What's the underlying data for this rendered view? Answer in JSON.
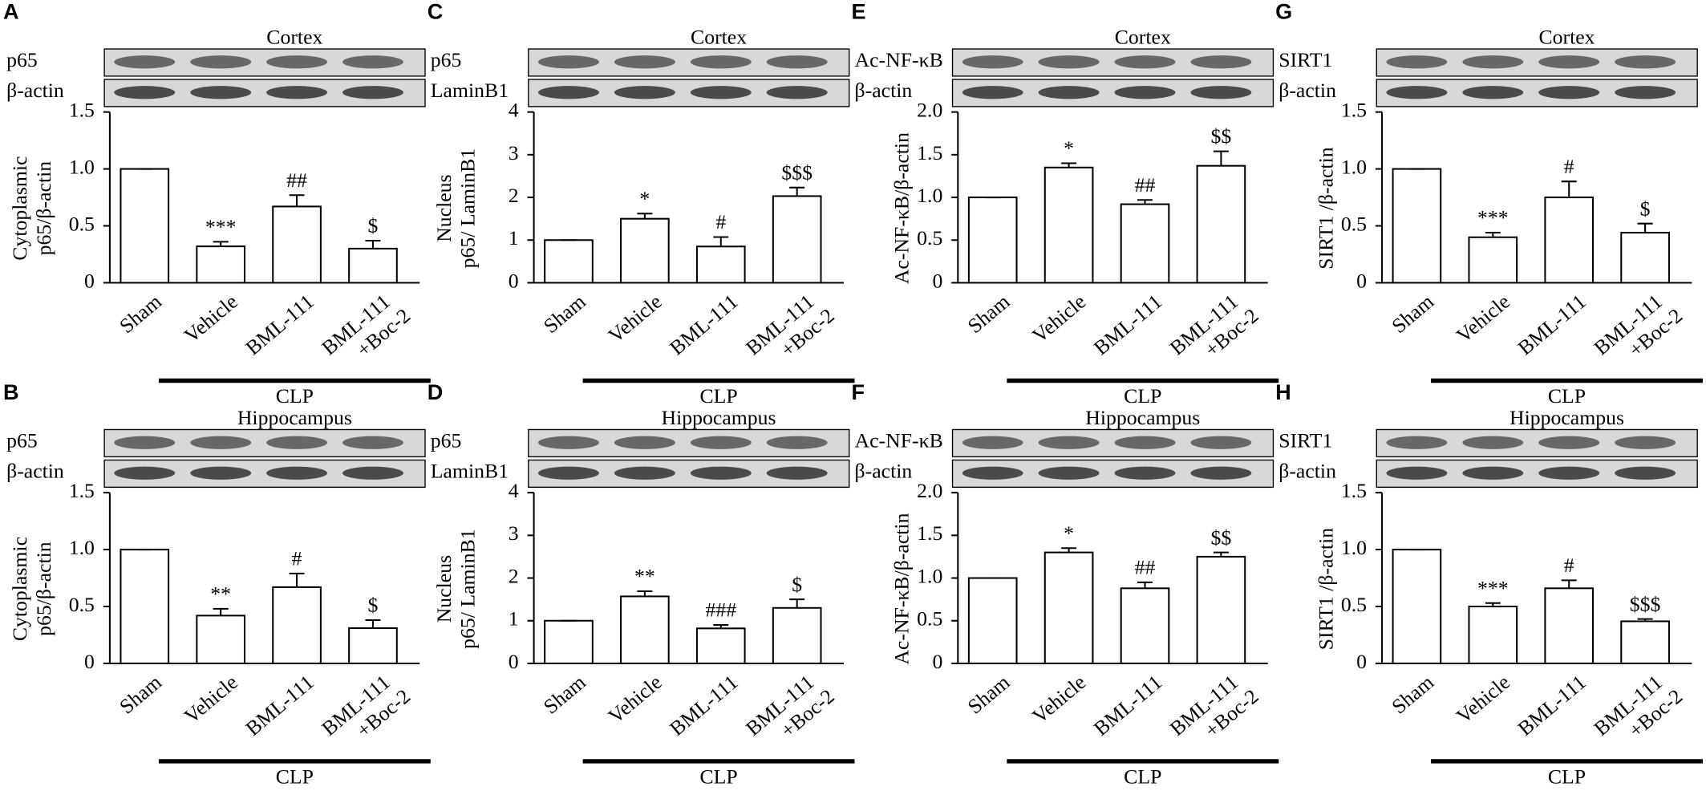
{
  "chart_data": [
    {
      "type": "bar",
      "panel": "A",
      "title": "Cortex",
      "blots": [
        "p65",
        "β-actin"
      ],
      "ylabel": [
        "Cytoplasmic",
        "p65/β-actin"
      ],
      "categories": [
        [
          "Sham"
        ],
        [
          "Vehicle"
        ],
        [
          "BML-111"
        ],
        [
          "BML-111",
          "+Boc-2"
        ]
      ],
      "values": [
        1.0,
        0.32,
        0.67,
        0.3
      ],
      "errors": [
        0,
        0.04,
        0.1,
        0.07
      ],
      "annotations": [
        null,
        "***",
        "##",
        "$"
      ],
      "ylim": [
        0,
        1.5
      ],
      "yticks": [
        0,
        {
          "value": 0.5,
          "label": "0.5"
        },
        {
          "value": 1,
          "label": "1.0"
        },
        {
          "value": 1.5,
          "label": "1.5"
        }
      ],
      "group_label": "CLP",
      "color": "#ffffff"
    },
    {
      "type": "bar",
      "panel": "C",
      "title": "Cortex",
      "blots": [
        "p65",
        "LaminB1"
      ],
      "ylabel": [
        "Nucleus",
        "p65/ LaminB1"
      ],
      "categories": [
        [
          "Sham"
        ],
        [
          "Vehicle"
        ],
        [
          "BML-111"
        ],
        [
          "BML-111",
          "+Boc-2"
        ]
      ],
      "values": [
        1.0,
        1.5,
        0.85,
        2.03
      ],
      "errors": [
        0,
        0.12,
        0.22,
        0.2
      ],
      "annotations": [
        null,
        "*",
        "#",
        "$$$"
      ],
      "ylim": [
        0,
        4
      ],
      "yticks": [
        0,
        1,
        2,
        3,
        4
      ],
      "group_label": "CLP",
      "color": "#ffffff"
    },
    {
      "type": "bar",
      "panel": "E",
      "title": "Cortex",
      "blots": [
        "Ac-NF-κB",
        "β-actin"
      ],
      "ylabel": [
        "Ac-NF-κB/β-actin"
      ],
      "categories": [
        [
          "Sham"
        ],
        [
          "Vehicle"
        ],
        [
          "BML-111"
        ],
        [
          "BML-111",
          "+Boc-2"
        ]
      ],
      "values": [
        1.0,
        1.35,
        0.92,
        1.37
      ],
      "errors": [
        0,
        0.05,
        0.05,
        0.17
      ],
      "annotations": [
        null,
        "*",
        "##",
        "$$"
      ],
      "ylim": [
        0,
        2
      ],
      "yticks": [
        0,
        {
          "value": 0.5,
          "label": "0.5"
        },
        {
          "value": 1,
          "label": "1.0"
        },
        {
          "value": 1.5,
          "label": "1.5"
        },
        {
          "value": 2,
          "label": "2.0"
        }
      ],
      "group_label": "CLP",
      "color": "#ffffff"
    },
    {
      "type": "bar",
      "panel": "G",
      "title": "Cortex",
      "blots": [
        "SIRT1",
        "β-actin"
      ],
      "ylabel": [
        "SIRT1 /β-actin"
      ],
      "categories": [
        [
          "Sham"
        ],
        [
          "Vehicle"
        ],
        [
          "BML-111"
        ],
        [
          "BML-111",
          "+Boc-2"
        ]
      ],
      "values": [
        1.0,
        0.4,
        0.75,
        0.44
      ],
      "errors": [
        0,
        0.04,
        0.14,
        0.08
      ],
      "annotations": [
        null,
        "***",
        "#",
        "$"
      ],
      "ylim": [
        0,
        1.5
      ],
      "yticks": [
        0,
        {
          "value": 0.5,
          "label": "0.5"
        },
        {
          "value": 1,
          "label": "1.0"
        },
        {
          "value": 1.5,
          "label": "1.5"
        }
      ],
      "group_label": "CLP",
      "color": "#ffffff"
    },
    {
      "type": "bar",
      "panel": "B",
      "title": "Hippocampus",
      "blots": [
        "p65",
        "β-actin"
      ],
      "ylabel": [
        "Cytoplasmic",
        "p65/β-actin"
      ],
      "categories": [
        [
          "Sham"
        ],
        [
          "Vehicle"
        ],
        [
          "BML-111"
        ],
        [
          "BML-111",
          "+Boc-2"
        ]
      ],
      "values": [
        1.0,
        0.42,
        0.67,
        0.31
      ],
      "errors": [
        0,
        0.06,
        0.12,
        0.07
      ],
      "annotations": [
        null,
        "**",
        "#",
        "$"
      ],
      "ylim": [
        0,
        1.5
      ],
      "yticks": [
        0,
        {
          "value": 0.5,
          "label": "0.5"
        },
        {
          "value": 1,
          "label": "1.0"
        },
        {
          "value": 1.5,
          "label": "1.5"
        }
      ],
      "group_label": "CLP",
      "color": "#ffffff"
    },
    {
      "type": "bar",
      "panel": "D",
      "title": "Hippocampus",
      "blots": [
        "p65",
        "LaminB1"
      ],
      "ylabel": [
        "Nucleus",
        "p65/ LaminB1"
      ],
      "categories": [
        [
          "Sham"
        ],
        [
          "Vehicle"
        ],
        [
          "BML-111"
        ],
        [
          "BML-111",
          "+Boc-2"
        ]
      ],
      "values": [
        1.0,
        1.57,
        0.82,
        1.3
      ],
      "errors": [
        0,
        0.12,
        0.08,
        0.2
      ],
      "annotations": [
        null,
        "**",
        "###",
        "$"
      ],
      "ylim": [
        0,
        4
      ],
      "yticks": [
        0,
        1,
        2,
        3,
        4
      ],
      "group_label": "CLP",
      "color": "#ffffff"
    },
    {
      "type": "bar",
      "panel": "F",
      "title": "Hippocampus",
      "blots": [
        "Ac-NF-κB",
        "β-actin"
      ],
      "ylabel": [
        "Ac-NF-κB/β-actin"
      ],
      "categories": [
        [
          "Sham"
        ],
        [
          "Vehicle"
        ],
        [
          "BML-111"
        ],
        [
          "BML-111",
          "+Boc-2"
        ]
      ],
      "values": [
        1.0,
        1.3,
        0.88,
        1.25
      ],
      "errors": [
        0,
        0.05,
        0.07,
        0.05
      ],
      "annotations": [
        null,
        "*",
        "##",
        "$$"
      ],
      "ylim": [
        0,
        2
      ],
      "yticks": [
        0,
        {
          "value": 0.5,
          "label": "0.5"
        },
        {
          "value": 1,
          "label": "1.0"
        },
        {
          "value": 1.5,
          "label": "1.5"
        },
        {
          "value": 2,
          "label": "2.0"
        }
      ],
      "group_label": "CLP",
      "color": "#ffffff"
    },
    {
      "type": "bar",
      "panel": "H",
      "title": "Hippocampus",
      "blots": [
        "SIRT1",
        "β-actin"
      ],
      "ylabel": [
        "SIRT1 /β-actin"
      ],
      "categories": [
        [
          "Sham"
        ],
        [
          "Vehicle"
        ],
        [
          "BML-111"
        ],
        [
          "BML-111",
          "+Boc-2"
        ]
      ],
      "values": [
        1.0,
        0.5,
        0.66,
        0.37
      ],
      "errors": [
        0,
        0.03,
        0.07,
        0.02
      ],
      "annotations": [
        null,
        "***",
        "#",
        "$$$"
      ],
      "ylim": [
        0,
        1.5
      ],
      "yticks": [
        0,
        {
          "value": 0.5,
          "label": "0.5"
        },
        {
          "value": 1,
          "label": "1.0"
        },
        {
          "value": 1.5,
          "label": "1.5"
        }
      ],
      "group_label": "CLP",
      "color": "#ffffff"
    }
  ]
}
